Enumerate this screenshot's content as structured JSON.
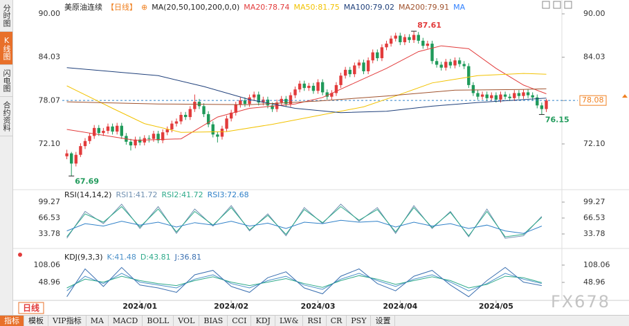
{
  "sidebar": {
    "tabs": [
      "分时图",
      "K线图",
      "闪电图",
      "合约资料"
    ],
    "active": 1
  },
  "chart_data": [
    {
      "type": "candlestick",
      "title_parts": [
        {
          "text": "美原油连续",
          "color": "#222222"
        },
        {
          "text": "【日线】",
          "color": "#f08020"
        },
        {
          "text": "⊕",
          "color": "#f08020"
        },
        {
          "text": "MA(20,50,100,200,0,0)",
          "color": "#222222"
        }
      ],
      "up_color": "#e23b3b",
      "down_color": "#1f9a5a",
      "open": [
        70.4,
        70.8,
        69.4,
        70.6,
        71.8,
        72.5,
        73.2,
        74.3,
        73.6,
        73.9,
        74.5,
        73.8,
        74.6,
        73.2,
        72.4,
        71.9,
        72.7,
        72.3,
        72.9,
        72.8,
        73.5,
        72.6,
        73.7,
        74.1,
        74.9,
        75.2,
        76.1,
        75.8,
        76.9,
        77.9,
        77.3,
        76.2,
        74.8,
        73.4,
        73.1,
        74.2,
        75.6,
        76.4,
        77.5,
        78.1,
        77.6,
        78.5,
        78.9,
        77.8,
        78.2,
        77.4,
        76.9,
        77.8,
        78.3,
        77.6,
        78.8,
        79.6,
        80.4,
        79.8,
        80.1,
        79.4,
        80.6,
        79.2,
        78.6,
        79.1,
        80.2,
        81.5,
        82.3,
        81.7,
        82.9,
        83.3,
        82.1,
        83.6,
        84.7,
        83.9,
        85.4,
        85.9,
        86.6,
        87.0,
        86.1,
        86.8,
        86.4,
        87.1,
        86.3,
        85.6,
        85.9,
        83.5,
        83.0,
        82.6,
        83.4,
        82.9,
        83.6,
        83.1,
        82.8,
        80.2,
        79.1,
        78.6,
        78.9,
        78.4,
        78.8,
        78.2,
        78.9,
        78.6,
        78.4,
        79.1,
        78.7,
        79.2,
        78.8,
        78.5,
        77.4,
        76.9
      ],
      "high": [
        71.3,
        71.0,
        71.0,
        72.2,
        72.9,
        73.6,
        74.7,
        74.7,
        74.3,
        74.9,
        74.9,
        75.0,
        75.0,
        73.6,
        72.8,
        73.1,
        73.1,
        73.3,
        73.3,
        73.9,
        73.9,
        74.1,
        74.5,
        75.3,
        75.6,
        76.5,
        76.5,
        77.3,
        78.9,
        78.3,
        77.7,
        76.6,
        75.2,
        73.8,
        74.6,
        76.0,
        76.8,
        77.9,
        78.5,
        78.5,
        78.9,
        79.3,
        79.3,
        78.6,
        78.6,
        77.8,
        78.2,
        78.7,
        78.7,
        79.2,
        80.0,
        80.8,
        80.8,
        80.5,
        80.5,
        81.0,
        81.0,
        79.6,
        79.5,
        80.6,
        81.9,
        82.7,
        82.7,
        83.3,
        83.7,
        83.7,
        84.0,
        85.1,
        85.1,
        85.8,
        86.3,
        87.0,
        87.4,
        87.4,
        87.2,
        87.2,
        87.61,
        87.5,
        86.7,
        86.3,
        86.3,
        83.9,
        83.4,
        83.8,
        83.8,
        84.0,
        84.0,
        83.5,
        83.2,
        80.6,
        79.5,
        79.3,
        79.3,
        79.2,
        79.2,
        79.3,
        79.3,
        79.0,
        79.5,
        79.5,
        79.6,
        79.6,
        79.2,
        78.9,
        77.8,
        78.3
      ],
      "low": [
        70.0,
        67.69,
        69.0,
        70.3,
        71.4,
        72.1,
        72.8,
        73.2,
        73.2,
        73.5,
        73.4,
        73.4,
        72.8,
        72.0,
        71.2,
        71.5,
        71.9,
        71.9,
        72.3,
        72.4,
        72.2,
        72.2,
        73.3,
        73.7,
        74.5,
        74.8,
        75.4,
        75.4,
        76.5,
        76.9,
        75.8,
        74.4,
        73.0,
        72.3,
        72.7,
        73.8,
        75.2,
        76.0,
        77.1,
        77.2,
        77.2,
        78.1,
        77.4,
        77.4,
        77.0,
        76.5,
        76.5,
        77.4,
        77.2,
        77.2,
        78.4,
        79.2,
        79.4,
        79.4,
        79.0,
        79.0,
        78.8,
        78.2,
        78.2,
        78.7,
        79.8,
        81.1,
        81.3,
        81.3,
        82.5,
        81.7,
        81.7,
        83.2,
        83.5,
        83.5,
        85.0,
        85.5,
        86.2,
        85.7,
        85.7,
        86.0,
        86.0,
        85.9,
        85.2,
        85.2,
        83.1,
        82.6,
        82.2,
        82.2,
        82.5,
        82.5,
        82.7,
        82.4,
        79.8,
        78.7,
        78.2,
        78.2,
        78.0,
        78.0,
        77.8,
        77.8,
        78.2,
        78.0,
        78.0,
        78.3,
        78.3,
        78.4,
        78.1,
        77.0,
        76.15,
        76.5
      ],
      "close": [
        70.8,
        69.4,
        70.6,
        71.8,
        72.5,
        73.2,
        74.3,
        73.6,
        73.9,
        74.5,
        73.8,
        74.6,
        73.2,
        72.4,
        71.9,
        72.7,
        72.3,
        72.9,
        72.8,
        73.5,
        72.6,
        73.7,
        74.1,
        74.9,
        75.2,
        76.1,
        75.8,
        76.9,
        77.9,
        77.3,
        76.2,
        74.8,
        73.4,
        73.1,
        74.2,
        75.6,
        76.4,
        77.5,
        78.1,
        77.6,
        78.5,
        78.9,
        77.8,
        78.2,
        77.4,
        76.9,
        77.8,
        78.3,
        77.6,
        78.8,
        79.6,
        80.4,
        79.8,
        80.1,
        79.4,
        80.6,
        79.2,
        78.6,
        79.1,
        80.2,
        81.5,
        82.3,
        81.7,
        82.9,
        83.3,
        82.1,
        83.6,
        84.7,
        83.9,
        85.4,
        85.9,
        86.6,
        87.0,
        86.1,
        86.8,
        86.4,
        87.1,
        86.3,
        85.6,
        85.9,
        83.5,
        83.0,
        82.6,
        83.4,
        82.9,
        83.6,
        83.1,
        82.8,
        80.2,
        79.1,
        78.6,
        78.9,
        78.4,
        78.8,
        78.2,
        78.9,
        78.6,
        78.4,
        79.1,
        78.7,
        79.2,
        78.8,
        78.5,
        77.4,
        76.9,
        78.08
      ],
      "series": [
        {
          "name": "MA20:78.74",
          "color": "#e23b3b",
          "x": [
            0,
            15,
            25,
            33,
            40,
            50,
            56,
            63,
            70,
            77,
            82,
            88,
            94,
            100,
            105
          ],
          "values": [
            74.1,
            72.6,
            72.8,
            75.8,
            77.0,
            77.6,
            78.5,
            80.5,
            82.5,
            84.8,
            85.6,
            85.2,
            82.5,
            80.2,
            79.0
          ]
        },
        {
          "name": "MA50:81.75",
          "color": "#f2c200",
          "x": [
            0,
            10,
            17,
            25,
            35,
            45,
            55,
            65,
            72,
            80,
            90,
            100,
            105
          ],
          "values": [
            80.1,
            77.0,
            74.9,
            73.7,
            73.8,
            74.8,
            76.0,
            77.2,
            78.7,
            80.5,
            81.5,
            81.8,
            81.7
          ]
        },
        {
          "name": "MA100:79.02",
          "color": "#1e3f7a",
          "x": [
            0,
            20,
            30,
            40,
            50,
            60,
            70,
            80,
            90,
            100,
            105
          ],
          "values": [
            82.6,
            81.5,
            80.0,
            78.2,
            77.0,
            76.4,
            76.6,
            77.3,
            77.8,
            78.2,
            78.4
          ]
        },
        {
          "name": "MA200:79.91",
          "color": "#a0522d",
          "x": [
            0,
            20,
            40,
            55,
            70,
            85,
            100,
            105
          ],
          "values": [
            77.9,
            77.6,
            77.5,
            78.0,
            78.7,
            79.5,
            79.6,
            79.7
          ]
        }
      ],
      "extra_legend": [
        {
          "text": "MA",
          "color": "#2f80ff"
        }
      ],
      "annotations": [
        {
          "index": 76,
          "value": 87.61,
          "color": "#e23b3b"
        },
        {
          "index": 1,
          "value": 67.69,
          "color": "#1f9a5a"
        },
        {
          "index": 104,
          "value": 76.15,
          "color": "#1f9a5a"
        }
      ],
      "last_price": 78.08,
      "xlim": [
        -1,
        107.2
      ],
      "xticks": [
        {
          "value": 16,
          "label": "2024/01"
        },
        {
          "value": 36,
          "label": "2024/02"
        },
        {
          "value": 55,
          "label": "2024/03"
        },
        {
          "value": 73,
          "label": "2024/04"
        },
        {
          "value": 94,
          "label": "2024/05"
        }
      ],
      "ylim": [
        66.0,
        91.43
      ],
      "yticks": [
        {
          "value": 72.1,
          "label": "72.10"
        },
        78.07,
        84.03,
        {
          "value": 90,
          "label": "90.00"
        }
      ]
    },
    {
      "type": "line",
      "title_parts": [
        {
          "text": "RSI(14,14,2)",
          "color": "#222222"
        }
      ],
      "x": [
        0,
        4,
        8,
        12,
        16,
        20,
        24,
        28,
        32,
        36,
        40,
        44,
        48,
        52,
        56,
        60,
        64,
        68,
        72,
        76,
        80,
        84,
        88,
        92,
        96,
        100,
        104
      ],
      "series": [
        {
          "name": "RSI1:41.72",
          "color": "#6f8fb0",
          "values": [
            25,
            80,
            55,
            95,
            45,
            90,
            35,
            85,
            50,
            92,
            40,
            75,
            30,
            88,
            55,
            95,
            60,
            88,
            35,
            92,
            45,
            80,
            28,
            85,
            25,
            30,
            70
          ]
        },
        {
          "name": "RSI2:41.72",
          "color": "#2eaa8a",
          "values": [
            28,
            75,
            58,
            90,
            48,
            85,
            38,
            80,
            52,
            88,
            42,
            72,
            33,
            84,
            57,
            90,
            62,
            84,
            38,
            88,
            47,
            78,
            30,
            80,
            28,
            33,
            68
          ]
        },
        {
          "name": "RSI3:72.68",
          "color": "#2f80c8",
          "values": [
            40,
            55,
            50,
            60,
            52,
            58,
            48,
            57,
            52,
            60,
            50,
            56,
            45,
            58,
            55,
            62,
            58,
            60,
            48,
            58,
            50,
            55,
            45,
            52,
            40,
            35,
            50
          ]
        }
      ],
      "xlim": [
        -1,
        107.2
      ],
      "ylim": [
        8.2,
        120.6
      ],
      "yticks": [
        33.78,
        66.53,
        99.27
      ]
    },
    {
      "type": "line",
      "title_parts": [
        {
          "text": "KDJ(9,3,3)",
          "color": "#222222"
        }
      ],
      "x": [
        0,
        4,
        8,
        12,
        16,
        20,
        24,
        28,
        32,
        36,
        40,
        44,
        48,
        52,
        56,
        60,
        64,
        68,
        72,
        76,
        80,
        84,
        88,
        92,
        96,
        100,
        104
      ],
      "series": [
        {
          "name": "K:41.48",
          "color": "#4a90c8",
          "values": [
            20,
            70,
            45,
            80,
            50,
            40,
            30,
            60,
            75,
            45,
            30,
            55,
            70,
            40,
            25,
            60,
            80,
            55,
            35,
            60,
            75,
            50,
            20,
            45,
            80,
            60,
            45
          ]
        },
        {
          "name": "D:43.81",
          "color": "#2eaa8a",
          "values": [
            30,
            60,
            50,
            70,
            55,
            45,
            38,
            55,
            68,
            50,
            38,
            50,
            62,
            45,
            32,
            55,
            72,
            60,
            42,
            55,
            68,
            55,
            30,
            42,
            70,
            65,
            48
          ]
        },
        {
          "name": "J:36.81",
          "color": "#3a6fb0",
          "values": [
            0,
            95,
            35,
            100,
            40,
            30,
            15,
            75,
            90,
            35,
            15,
            65,
            85,
            30,
            10,
            70,
            95,
            45,
            20,
            70,
            90,
            40,
            0,
            55,
            100,
            50,
            38
          ]
        }
      ],
      "xlim": [
        -1,
        107.2
      ],
      "ylim": [
        -7.8,
        157.7
      ],
      "yticks": [
        48.96,
        108.06
      ]
    }
  ],
  "period_button": "日线",
  "watermark": "FX678",
  "toolbar": {
    "items": [
      "指标",
      "模板",
      "VIP指标",
      "MA",
      "MACD",
      "BOLL",
      "VOL",
      "BIAS",
      "CCI",
      "KDJ",
      "LW&",
      "RSI",
      "CR",
      "PSY",
      "设置"
    ],
    "active": 0
  }
}
